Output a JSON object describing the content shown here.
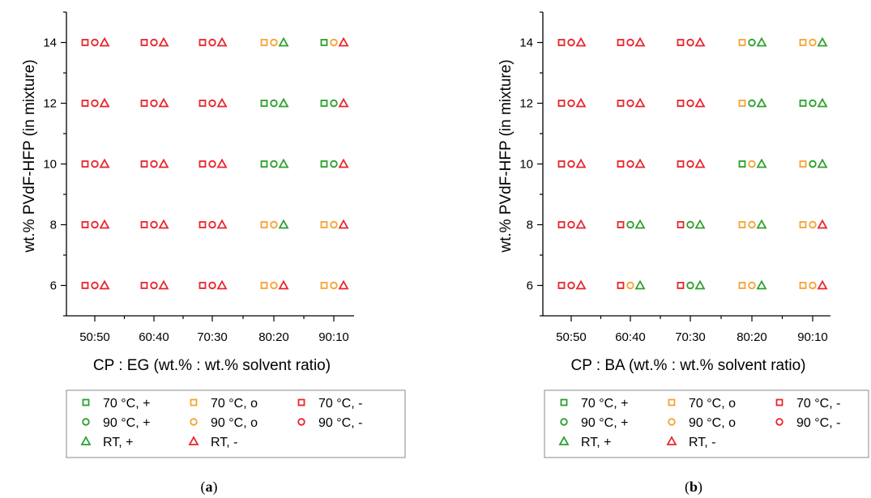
{
  "colors": {
    "green": "#2ca02c",
    "orange": "#f7a233",
    "red": "#e8252d"
  },
  "chart_data": [
    {
      "type": "scatter",
      "panel": "(a)",
      "xlabel": "CP : EG (wt.% : wt.% solvent ratio)",
      "ylabel": "wt.% PVdF-HFP (in mixture)",
      "categories": [
        "50:50",
        "60:40",
        "70:30",
        "80:20",
        "90:10"
      ],
      "y_values": [
        6,
        8,
        10,
        12,
        14
      ],
      "ylim": [
        5,
        15
      ],
      "yticks": [
        6,
        8,
        10,
        12,
        14
      ],
      "grid": false,
      "legend_placement": "bottom",
      "marker_series": [
        {
          "marker": "square",
          "condition": "70 °C"
        },
        {
          "marker": "circle",
          "condition": "90 °C"
        },
        {
          "marker": "triangle",
          "condition": "RT"
        }
      ],
      "points": [
        {
          "x": "50:50",
          "y": 14,
          "results": [
            "-",
            "-",
            "-"
          ]
        },
        {
          "x": "60:40",
          "y": 14,
          "results": [
            "-",
            "-",
            "-"
          ]
        },
        {
          "x": "70:30",
          "y": 14,
          "results": [
            "-",
            "-",
            "-"
          ]
        },
        {
          "x": "80:20",
          "y": 14,
          "results": [
            "o",
            "o",
            "+"
          ]
        },
        {
          "x": "90:10",
          "y": 14,
          "results": [
            "+",
            "o",
            "-"
          ]
        },
        {
          "x": "50:50",
          "y": 12,
          "results": [
            "-",
            "-",
            "-"
          ]
        },
        {
          "x": "60:40",
          "y": 12,
          "results": [
            "-",
            "-",
            "-"
          ]
        },
        {
          "x": "70:30",
          "y": 12,
          "results": [
            "-",
            "-",
            "-"
          ]
        },
        {
          "x": "80:20",
          "y": 12,
          "results": [
            "+",
            "+",
            "+"
          ]
        },
        {
          "x": "90:10",
          "y": 12,
          "results": [
            "+",
            "+",
            "-"
          ]
        },
        {
          "x": "50:50",
          "y": 10,
          "results": [
            "-",
            "-",
            "-"
          ]
        },
        {
          "x": "60:40",
          "y": 10,
          "results": [
            "-",
            "-",
            "-"
          ]
        },
        {
          "x": "70:30",
          "y": 10,
          "results": [
            "-",
            "-",
            "-"
          ]
        },
        {
          "x": "80:20",
          "y": 10,
          "results": [
            "+",
            "+",
            "+"
          ]
        },
        {
          "x": "90:10",
          "y": 10,
          "results": [
            "+",
            "+",
            "-"
          ]
        },
        {
          "x": "50:50",
          "y": 8,
          "results": [
            "-",
            "-",
            "-"
          ]
        },
        {
          "x": "60:40",
          "y": 8,
          "results": [
            "-",
            "-",
            "-"
          ]
        },
        {
          "x": "70:30",
          "y": 8,
          "results": [
            "-",
            "-",
            "-"
          ]
        },
        {
          "x": "80:20",
          "y": 8,
          "results": [
            "o",
            "o",
            "+"
          ]
        },
        {
          "x": "90:10",
          "y": 8,
          "results": [
            "o",
            "o",
            "-"
          ]
        },
        {
          "x": "50:50",
          "y": 6,
          "results": [
            "-",
            "-",
            "-"
          ]
        },
        {
          "x": "60:40",
          "y": 6,
          "results": [
            "-",
            "-",
            "-"
          ]
        },
        {
          "x": "70:30",
          "y": 6,
          "results": [
            "-",
            "-",
            "-"
          ]
        },
        {
          "x": "80:20",
          "y": 6,
          "results": [
            "o",
            "o",
            "-"
          ]
        },
        {
          "x": "90:10",
          "y": 6,
          "results": [
            "o",
            "o",
            "-"
          ]
        }
      ],
      "legend": [
        {
          "label": "70 °C, +",
          "marker": "square",
          "color": "green"
        },
        {
          "label": "70 °C, o",
          "marker": "square",
          "color": "orange"
        },
        {
          "label": "70 °C, -",
          "marker": "square",
          "color": "red"
        },
        {
          "label": "90 °C, +",
          "marker": "circle",
          "color": "green"
        },
        {
          "label": "90 °C, o",
          "marker": "circle",
          "color": "orange"
        },
        {
          "label": "90 °C, -",
          "marker": "circle",
          "color": "red"
        },
        {
          "label": "RT, +",
          "marker": "triangle",
          "color": "green"
        },
        {
          "label": "RT, -",
          "marker": "triangle",
          "color": "red"
        }
      ]
    },
    {
      "type": "scatter",
      "panel": "(b)",
      "xlabel": "CP : BA (wt.% : wt.% solvent ratio)",
      "ylabel": "wt.% PVdF-HFP (in mixture)",
      "categories": [
        "50:50",
        "60:40",
        "70:30",
        "80:20",
        "90:10"
      ],
      "y_values": [
        6,
        8,
        10,
        12,
        14
      ],
      "ylim": [
        5,
        15
      ],
      "yticks": [
        6,
        8,
        10,
        12,
        14
      ],
      "grid": false,
      "legend_placement": "bottom",
      "marker_series": [
        {
          "marker": "square",
          "condition": "70 °C"
        },
        {
          "marker": "circle",
          "condition": "90 °C"
        },
        {
          "marker": "triangle",
          "condition": "RT"
        }
      ],
      "points": [
        {
          "x": "50:50",
          "y": 14,
          "results": [
            "-",
            "-",
            "-"
          ]
        },
        {
          "x": "60:40",
          "y": 14,
          "results": [
            "-",
            "-",
            "-"
          ]
        },
        {
          "x": "70:30",
          "y": 14,
          "results": [
            "-",
            "-",
            "-"
          ]
        },
        {
          "x": "80:20",
          "y": 14,
          "results": [
            "o",
            "+",
            "+"
          ]
        },
        {
          "x": "90:10",
          "y": 14,
          "results": [
            "o",
            "o",
            "+"
          ]
        },
        {
          "x": "50:50",
          "y": 12,
          "results": [
            "-",
            "-",
            "-"
          ]
        },
        {
          "x": "60:40",
          "y": 12,
          "results": [
            "-",
            "-",
            "-"
          ]
        },
        {
          "x": "70:30",
          "y": 12,
          "results": [
            "-",
            "-",
            "-"
          ]
        },
        {
          "x": "80:20",
          "y": 12,
          "results": [
            "o",
            "+",
            "+"
          ]
        },
        {
          "x": "90:10",
          "y": 12,
          "results": [
            "+",
            "+",
            "+"
          ]
        },
        {
          "x": "50:50",
          "y": 10,
          "results": [
            "-",
            "-",
            "-"
          ]
        },
        {
          "x": "60:40",
          "y": 10,
          "results": [
            "-",
            "-",
            "-"
          ]
        },
        {
          "x": "70:30",
          "y": 10,
          "results": [
            "-",
            "-",
            "-"
          ]
        },
        {
          "x": "80:20",
          "y": 10,
          "results": [
            "+",
            "o",
            "+"
          ]
        },
        {
          "x": "90:10",
          "y": 10,
          "results": [
            "o",
            "+",
            "+"
          ]
        },
        {
          "x": "50:50",
          "y": 8,
          "results": [
            "-",
            "-",
            "-"
          ]
        },
        {
          "x": "60:40",
          "y": 8,
          "results": [
            "-",
            "+",
            "+"
          ]
        },
        {
          "x": "70:30",
          "y": 8,
          "results": [
            "-",
            "+",
            "+"
          ]
        },
        {
          "x": "80:20",
          "y": 8,
          "results": [
            "o",
            "o",
            "+"
          ]
        },
        {
          "x": "90:10",
          "y": 8,
          "results": [
            "o",
            "o",
            "-"
          ]
        },
        {
          "x": "50:50",
          "y": 6,
          "results": [
            "-",
            "-",
            "-"
          ]
        },
        {
          "x": "60:40",
          "y": 6,
          "results": [
            "-",
            "o",
            "+"
          ]
        },
        {
          "x": "70:30",
          "y": 6,
          "results": [
            "-",
            "+",
            "+"
          ]
        },
        {
          "x": "80:20",
          "y": 6,
          "results": [
            "o",
            "o",
            "+"
          ]
        },
        {
          "x": "90:10",
          "y": 6,
          "results": [
            "o",
            "o",
            "-"
          ]
        }
      ],
      "legend": [
        {
          "label": "70 °C, +",
          "marker": "square",
          "color": "green"
        },
        {
          "label": "70 °C, o",
          "marker": "square",
          "color": "orange"
        },
        {
          "label": "70 °C, -",
          "marker": "square",
          "color": "red"
        },
        {
          "label": "90 °C, +",
          "marker": "circle",
          "color": "green"
        },
        {
          "label": "90 °C, o",
          "marker": "circle",
          "color": "orange"
        },
        {
          "label": "90 °C, -",
          "marker": "circle",
          "color": "red"
        },
        {
          "label": "RT, +",
          "marker": "triangle",
          "color": "green"
        },
        {
          "label": "RT, -",
          "marker": "triangle",
          "color": "red"
        }
      ]
    }
  ]
}
